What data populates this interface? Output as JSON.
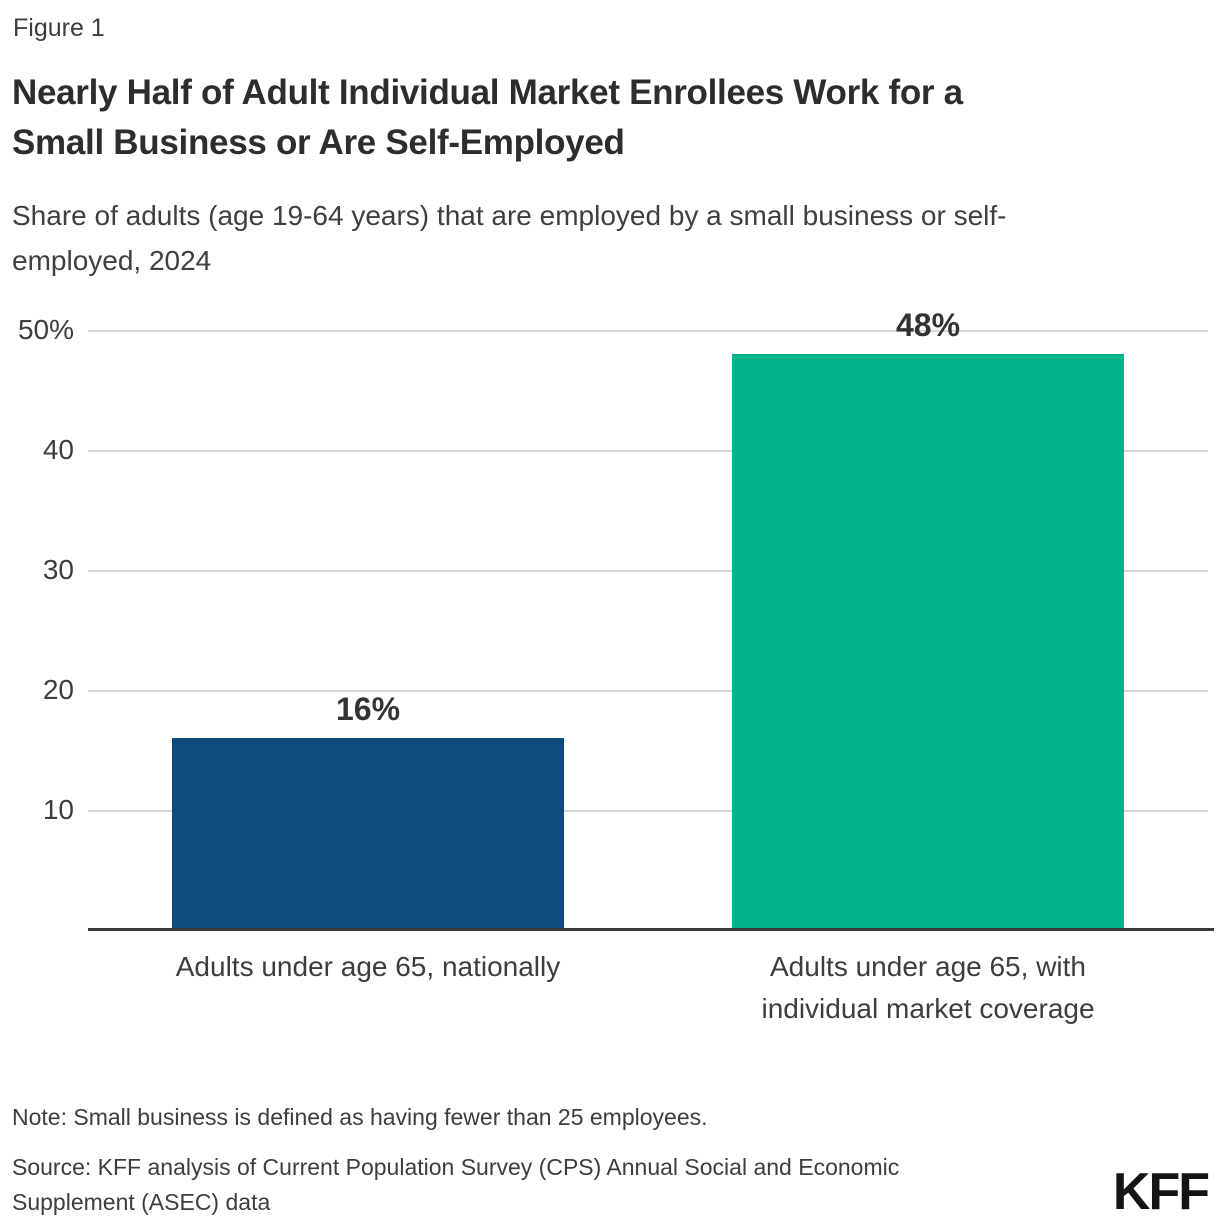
{
  "figure_label": "Figure 1",
  "title": "Nearly Half of Adult Individual Market Enrollees Work for a\nSmall Business or Are Self-Employed",
  "subtitle": "Share of adults (age 19-64 years) that are employed by a small business or self-\nemployed, 2024",
  "chart_data": {
    "type": "bar",
    "categories": [
      "Adults under age 65, nationally",
      "Adults under age 65, with\nindividual market coverage"
    ],
    "values": [
      16,
      48
    ],
    "value_labels": [
      "16%",
      "48%"
    ],
    "bar_colors": [
      "#0d4a7e",
      "#00b389"
    ],
    "title": "Nearly Half of Adult Individual Market Enrollees Work for a Small Business or Are Self-Employed",
    "xlabel": "",
    "ylabel": "",
    "ylim": [
      0,
      50
    ],
    "yticks": [
      10,
      20,
      30,
      40,
      50
    ],
    "ytick_labels": [
      "10",
      "20",
      "30",
      "40",
      "50%"
    ],
    "grid": true,
    "gridline_color": "#d7d7d7",
    "axis_line_color": "#3c3c3c",
    "legend": "none"
  },
  "note": "Note: Small business is defined as having fewer than 25 employees.",
  "source": "Source: KFF analysis of Current Population Survey (CPS) Annual Social and Economic\nSupplement (ASEC) data",
  "logo_text": "KFF"
}
